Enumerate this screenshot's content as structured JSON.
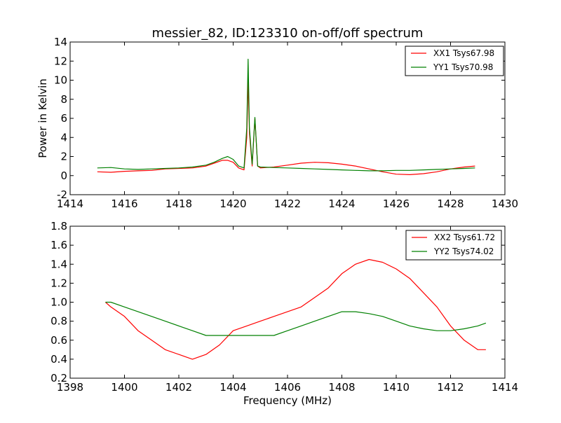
{
  "chart_data": [
    {
      "type": "line",
      "title": "messier_82, ID:123310 on-off/off spectrum",
      "xlabel": "",
      "ylabel": "Power in Kelvin",
      "xlim": [
        1414,
        1430
      ],
      "ylim": [
        -2,
        14
      ],
      "xticks": [
        1414,
        1416,
        1418,
        1420,
        1422,
        1424,
        1426,
        1428,
        1430
      ],
      "yticks": [
        -2,
        0,
        2,
        4,
        6,
        8,
        10,
        12,
        14
      ],
      "grid": false,
      "legend_position": "top-right",
      "series": [
        {
          "name": "XX1 Tsys67.98",
          "color": "#ff0000",
          "x": [
            1415.0,
            1415.5,
            1416.0,
            1416.5,
            1417.0,
            1417.5,
            1418.0,
            1418.5,
            1419.0,
            1419.3,
            1419.6,
            1419.8,
            1420.0,
            1420.2,
            1420.4,
            1420.5,
            1420.55,
            1420.6,
            1420.7,
            1420.8,
            1420.9,
            1421.0,
            1421.5,
            1422.0,
            1422.5,
            1423.0,
            1423.5,
            1424.0,
            1424.5,
            1425.0,
            1425.5,
            1426.0,
            1426.5,
            1427.0,
            1427.5,
            1428.0,
            1428.5,
            1428.9
          ],
          "values": [
            0.4,
            0.35,
            0.45,
            0.5,
            0.55,
            0.7,
            0.75,
            0.8,
            1.0,
            1.3,
            1.6,
            1.6,
            1.4,
            0.8,
            0.6,
            4.0,
            10.0,
            4.5,
            1.0,
            6.0,
            1.0,
            0.8,
            0.9,
            1.1,
            1.3,
            1.4,
            1.35,
            1.2,
            1.0,
            0.7,
            0.4,
            0.15,
            0.1,
            0.2,
            0.4,
            0.7,
            0.9,
            1.0
          ]
        },
        {
          "name": "YY1 Tsys70.98",
          "color": "#008000",
          "x": [
            1415.0,
            1415.5,
            1416.0,
            1416.5,
            1417.0,
            1417.5,
            1418.0,
            1418.5,
            1419.0,
            1419.3,
            1419.6,
            1419.8,
            1420.0,
            1420.2,
            1420.4,
            1420.5,
            1420.55,
            1420.6,
            1420.7,
            1420.8,
            1420.9,
            1421.0,
            1421.5,
            1422.0,
            1422.5,
            1423.0,
            1423.5,
            1424.0,
            1424.5,
            1425.0,
            1425.5,
            1426.0,
            1426.5,
            1427.0,
            1427.5,
            1428.0,
            1428.5,
            1428.9
          ],
          "values": [
            0.8,
            0.85,
            0.7,
            0.65,
            0.7,
            0.75,
            0.8,
            0.9,
            1.1,
            1.4,
            1.8,
            2.0,
            1.7,
            1.0,
            0.8,
            5.0,
            12.2,
            5.0,
            1.2,
            6.1,
            1.0,
            0.9,
            0.85,
            0.8,
            0.75,
            0.7,
            0.65,
            0.6,
            0.55,
            0.5,
            0.5,
            0.55,
            0.55,
            0.6,
            0.65,
            0.7,
            0.75,
            0.8
          ]
        }
      ]
    },
    {
      "type": "line",
      "title": "",
      "xlabel": "Frequency (MHz)",
      "ylabel": "",
      "xlim": [
        1398,
        1414
      ],
      "ylim": [
        0.2,
        1.8
      ],
      "xticks": [
        1398,
        1400,
        1402,
        1404,
        1406,
        1408,
        1410,
        1412,
        1414
      ],
      "yticks": [
        0.2,
        0.4,
        0.6,
        0.8,
        1.0,
        1.2,
        1.4,
        1.6,
        1.8
      ],
      "grid": false,
      "legend_position": "top-right",
      "series": [
        {
          "name": "XX2 Tsys61.72",
          "color": "#ff0000",
          "x": [
            1399.3,
            1399.5,
            1400.0,
            1400.5,
            1401.0,
            1401.5,
            1402.0,
            1402.5,
            1403.0,
            1403.5,
            1404.0,
            1404.5,
            1405.0,
            1405.5,
            1406.0,
            1406.5,
            1407.0,
            1407.5,
            1408.0,
            1408.5,
            1409.0,
            1409.5,
            1410.0,
            1410.5,
            1411.0,
            1411.5,
            1412.0,
            1412.5,
            1413.0,
            1413.3
          ],
          "values": [
            1.0,
            0.95,
            0.85,
            0.7,
            0.6,
            0.5,
            0.45,
            0.4,
            0.45,
            0.55,
            0.7,
            0.75,
            0.8,
            0.85,
            0.9,
            0.95,
            1.05,
            1.15,
            1.3,
            1.4,
            1.45,
            1.42,
            1.35,
            1.25,
            1.1,
            0.95,
            0.75,
            0.6,
            0.5,
            0.5
          ]
        },
        {
          "name": "YY2 Tsys74.02",
          "color": "#008000",
          "x": [
            1399.3,
            1399.5,
            1400.0,
            1400.5,
            1401.0,
            1401.5,
            1402.0,
            1402.5,
            1403.0,
            1403.5,
            1404.0,
            1404.5,
            1405.0,
            1405.5,
            1406.0,
            1406.5,
            1407.0,
            1407.5,
            1408.0,
            1408.5,
            1409.0,
            1409.5,
            1410.0,
            1410.5,
            1411.0,
            1411.5,
            1412.0,
            1412.5,
            1413.0,
            1413.3
          ],
          "values": [
            1.0,
            1.0,
            0.95,
            0.9,
            0.85,
            0.8,
            0.75,
            0.7,
            0.65,
            0.65,
            0.65,
            0.65,
            0.65,
            0.65,
            0.7,
            0.75,
            0.8,
            0.85,
            0.9,
            0.9,
            0.88,
            0.85,
            0.8,
            0.75,
            0.72,
            0.7,
            0.7,
            0.72,
            0.75,
            0.78
          ]
        }
      ]
    }
  ]
}
